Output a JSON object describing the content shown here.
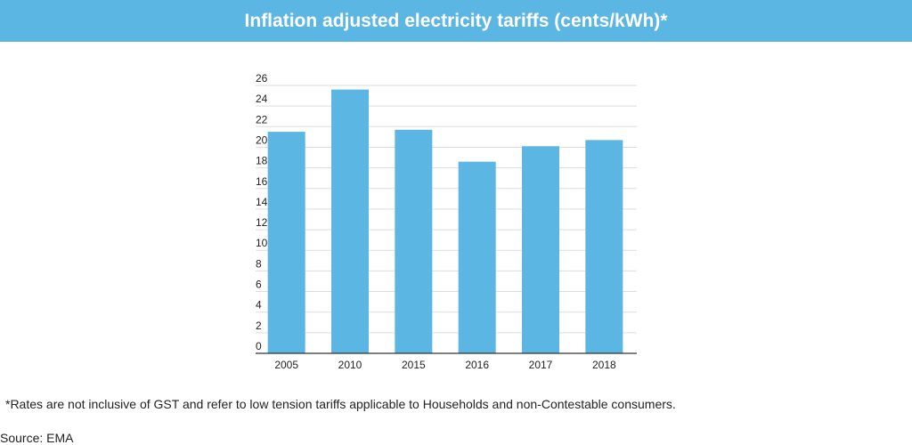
{
  "header": {
    "title": "Inflation adjusted electricity tariffs (cents/kWh)*"
  },
  "colors": {
    "title_bar": "#5cb6e4",
    "bar": "#5cb6e4",
    "gridline": "#dddddd",
    "text": "#222222"
  },
  "chart_data": {
    "type": "bar",
    "categories": [
      "2005",
      "2010",
      "2015",
      "2016",
      "2017",
      "2018"
    ],
    "values": [
      21.5,
      25.6,
      21.7,
      18.6,
      20.1,
      20.7
    ],
    "y_ticks": [
      "0",
      "2",
      "4",
      "6",
      "8",
      "10",
      "12",
      "14",
      "16",
      "18",
      "20",
      "22",
      "24",
      "26"
    ],
    "ylim": [
      0,
      26
    ],
    "grid": true,
    "legend": "none"
  },
  "footnote": "*Rates are not inclusive of GST and refer to low tension tariffs applicable to Households and non-Contestable consumers.",
  "source": "Source: EMA"
}
